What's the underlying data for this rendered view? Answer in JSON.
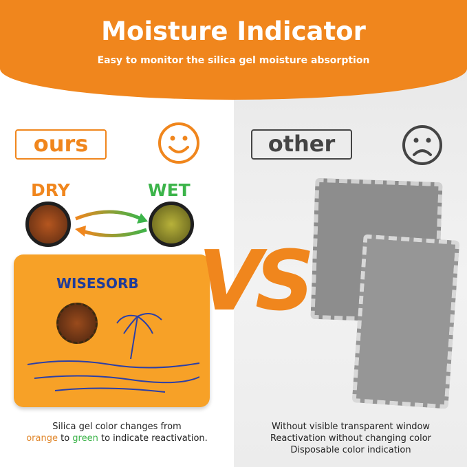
{
  "header": {
    "title": "Moisture Indicator",
    "subtitle": "Easy to monitor the silica gel moisture absorption"
  },
  "left": {
    "tag": "ours",
    "face": "smiley-face-icon",
    "dry_label": "DRY",
    "wet_label": "WET",
    "brand": "WISESORB",
    "caption_line1": "Silica gel color changes from",
    "caption_orange": "orange",
    "caption_to": " to ",
    "caption_green": "green",
    "caption_end": " to indicate reactivation."
  },
  "right": {
    "tag": "other",
    "face": "sad-face-icon",
    "caption_lines": [
      "Without visible transparent window",
      "Reactivation without changing color",
      "Disposable color indication"
    ]
  },
  "vs": "VS",
  "colors": {
    "orange": "#f0861d",
    "green": "#3cb44a",
    "gray": "#444444"
  }
}
